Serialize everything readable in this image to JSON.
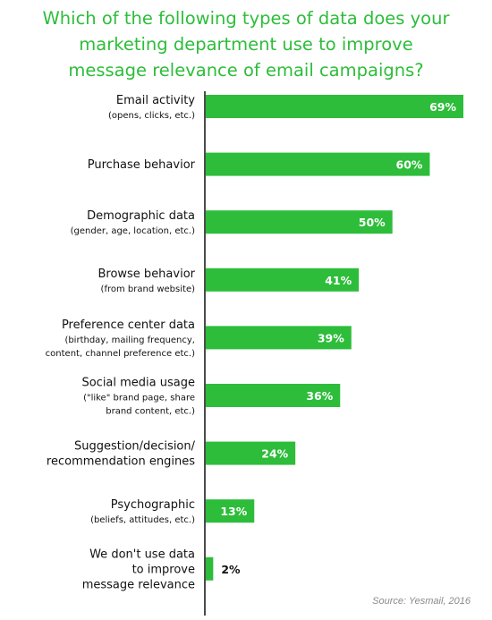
{
  "title_lines": [
    "Which of the following types of data does your",
    "marketing department use to improve",
    "message relevance of email campaigns?"
  ],
  "source": "Source: Yesmail, 2016",
  "colors": {
    "bar": "#2dbd3a",
    "title": "#2dbd3a",
    "label": "#111111",
    "axis": "#111111",
    "source": "#8a8a8a"
  },
  "chart_data": {
    "type": "bar",
    "orientation": "horizontal",
    "categories": [
      {
        "label": "Email activity",
        "sublabel": [
          "(opens, clicks, etc.)"
        ]
      },
      {
        "label": "Purchase behavior",
        "sublabel": []
      },
      {
        "label": "Demographic data",
        "sublabel": [
          "(gender, age, location, etc.)"
        ]
      },
      {
        "label": "Browse behavior",
        "sublabel": [
          "(from brand website)"
        ]
      },
      {
        "label": "Preference center data",
        "sublabel": [
          "(birthday, mailing frequency,",
          "content, channel preference etc.)"
        ]
      },
      {
        "label": "Social media usage",
        "sublabel": [
          "(\"like\" brand page, share",
          "brand content, etc.)"
        ]
      },
      {
        "label": "Suggestion/decision/",
        "sublabel": [],
        "label2": "recommendation engines"
      },
      {
        "label": "Psychographic",
        "sublabel": [
          "(beliefs, attitudes, etc.)"
        ]
      },
      {
        "label": "We don't use data",
        "sublabel": [],
        "label2": "to improve",
        "label3": "message relevance"
      }
    ],
    "values": [
      69,
      60,
      50,
      41,
      39,
      36,
      24,
      13,
      2
    ],
    "value_labels": [
      "69%",
      "60%",
      "50%",
      "41%",
      "39%",
      "36%",
      "24%",
      "13%",
      "2%"
    ],
    "xlim": [
      0,
      69
    ],
    "grid": false,
    "legend": "none"
  }
}
